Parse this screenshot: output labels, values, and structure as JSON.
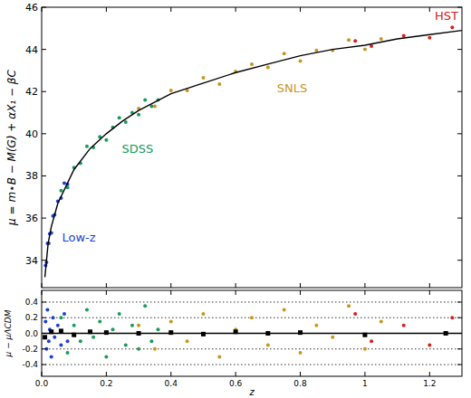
{
  "chart_data": [
    {
      "type": "scatter",
      "y_label": "μ = m⋆B − M(G) + αX₁ − βC",
      "xlim": [
        0,
        1.3
      ],
      "xticks": [
        {
          "value": 0,
          "label": "0.0"
        },
        0.2,
        0.4,
        0.6,
        0.8,
        1.0,
        1.2
      ],
      "ylim": [
        32.7,
        46
      ],
      "yticks": [
        34,
        36,
        38,
        40,
        42,
        44,
        46
      ],
      "tick_labels": "y",
      "grid": false,
      "series": [
        {
          "name": "Low-z",
          "type": "scatter",
          "marker": "circle",
          "color": "#1f3fd0",
          "x": [
            0.012,
            0.015,
            0.018,
            0.022,
            0.025,
            0.03,
            0.035,
            0.04,
            0.05,
            0.06,
            0.07,
            0.08
          ],
          "values": [
            33.75,
            33.9,
            34.8,
            34.8,
            35.25,
            35.3,
            36.1,
            36.15,
            36.8,
            36.95,
            37.65,
            37.6
          ]
        },
        {
          "name": "SDSS",
          "type": "scatter",
          "marker": "circle",
          "color": "#1a9a5c",
          "x": [
            0.06,
            0.08,
            0.1,
            0.12,
            0.14,
            0.16,
            0.18,
            0.2,
            0.22,
            0.24,
            0.26,
            0.28,
            0.3,
            0.32,
            0.34,
            0.36
          ],
          "values": [
            37.3,
            37.45,
            38.4,
            38.6,
            39.4,
            39.35,
            39.85,
            39.7,
            40.3,
            40.75,
            40.55,
            41.0,
            40.9,
            41.6,
            41.3,
            41.6
          ]
        },
        {
          "name": "SNLS",
          "type": "scatter",
          "marker": "circle",
          "color": "#c8961e",
          "x": [
            0.3,
            0.35,
            0.4,
            0.45,
            0.5,
            0.55,
            0.6,
            0.65,
            0.7,
            0.75,
            0.8,
            0.85,
            0.9,
            0.95,
            1.0,
            1.05
          ],
          "values": [
            41.2,
            41.3,
            42.05,
            42.05,
            42.65,
            42.35,
            42.95,
            43.3,
            43.15,
            43.8,
            43.45,
            43.95,
            43.95,
            44.45,
            44.0,
            44.5
          ]
        },
        {
          "name": "HST",
          "type": "scatter",
          "marker": "circle",
          "color": "#d42020",
          "x": [
            0.97,
            1.02,
            1.12,
            1.2,
            1.27
          ],
          "values": [
            44.4,
            44.15,
            44.65,
            44.55,
            45.05
          ]
        },
        {
          "type": "line",
          "color": "#000000",
          "x": [
            0.01,
            0.02,
            0.03,
            0.05,
            0.1,
            0.15,
            0.2,
            0.25,
            0.3,
            0.35,
            0.4,
            0.5,
            0.6,
            0.7,
            0.8,
            0.9,
            1.0,
            1.1,
            1.2,
            1.3
          ],
          "values": [
            33.2,
            34.8,
            35.6,
            36.7,
            38.3,
            39.3,
            40.0,
            40.6,
            41.1,
            41.5,
            41.9,
            42.4,
            42.9,
            43.3,
            43.7,
            44.0,
            44.2,
            44.5,
            44.7,
            44.9
          ]
        }
      ]
    },
    {
      "type": "scatter",
      "y_label": "μ − μΛCDM",
      "x_label": "z",
      "xlim": [
        0,
        1.3
      ],
      "xticks": [
        {
          "value": 0,
          "label": "0.0"
        },
        0.2,
        0.4,
        0.6,
        0.8,
        1.0,
        1.2
      ],
      "ylim": [
        -0.55,
        0.55
      ],
      "yticks": [
        -0.4,
        -0.2,
        {
          "value": 0,
          "label": "0.0"
        },
        0.2,
        0.4
      ],
      "grid": true,
      "series": [
        {
          "type": "scatter",
          "marker": "circle",
          "color": "#1f3fd0",
          "x": [
            0.012,
            0.015,
            0.018,
            0.022,
            0.025,
            0.03,
            0.035,
            0.04,
            0.05,
            0.06,
            0.07,
            0.08
          ],
          "values": [
            0.15,
            -0.2,
            0.3,
            -0.1,
            0.05,
            -0.3,
            0.2,
            -0.05,
            0.1,
            -0.15,
            0.25,
            -0.1
          ]
        },
        {
          "type": "scatter",
          "marker": "circle",
          "color": "#1a9a5c",
          "x": [
            0.06,
            0.08,
            0.1,
            0.12,
            0.14,
            0.16,
            0.18,
            0.2,
            0.22,
            0.24,
            0.26,
            0.28,
            0.3,
            0.32,
            0.34,
            0.36
          ],
          "values": [
            0.2,
            -0.25,
            0.1,
            -0.1,
            0.3,
            -0.05,
            0.15,
            -0.3,
            0.05,
            0.25,
            -0.15,
            0.1,
            -0.2,
            0.35,
            -0.1,
            0.05
          ]
        },
        {
          "type": "scatter",
          "marker": "circle",
          "color": "#c8961e",
          "x": [
            0.3,
            0.35,
            0.4,
            0.45,
            0.5,
            0.55,
            0.6,
            0.65,
            0.7,
            0.75,
            0.8,
            0.85,
            0.9,
            0.95,
            1.0,
            1.05
          ],
          "values": [
            0.1,
            -0.2,
            0.15,
            -0.1,
            0.25,
            -0.3,
            0.05,
            0.2,
            -0.15,
            0.3,
            -0.25,
            0.1,
            -0.05,
            0.35,
            -0.2,
            0.15
          ]
        },
        {
          "type": "scatter",
          "marker": "circle",
          "color": "#d42020",
          "x": [
            0.97,
            1.02,
            1.12,
            1.2,
            1.27
          ],
          "values": [
            0.25,
            -0.1,
            0.1,
            -0.15,
            0.2
          ]
        },
        {
          "type": "line",
          "color": "#000000",
          "x": [
            0,
            1.3
          ],
          "values": [
            0,
            0
          ]
        },
        {
          "type": "scatter",
          "marker": "square",
          "color": "#000000",
          "x": [
            0.01,
            0.03,
            0.06,
            0.1,
            0.15,
            0.2,
            0.3,
            0.4,
            0.5,
            0.6,
            0.7,
            0.8,
            1.0,
            1.25
          ],
          "values": [
            -0.05,
            0.02,
            0.03,
            -0.02,
            0.02,
            0.01,
            0,
            0.01,
            -0.01,
            0.02,
            0,
            0.01,
            -0.02,
            0
          ]
        }
      ]
    }
  ]
}
